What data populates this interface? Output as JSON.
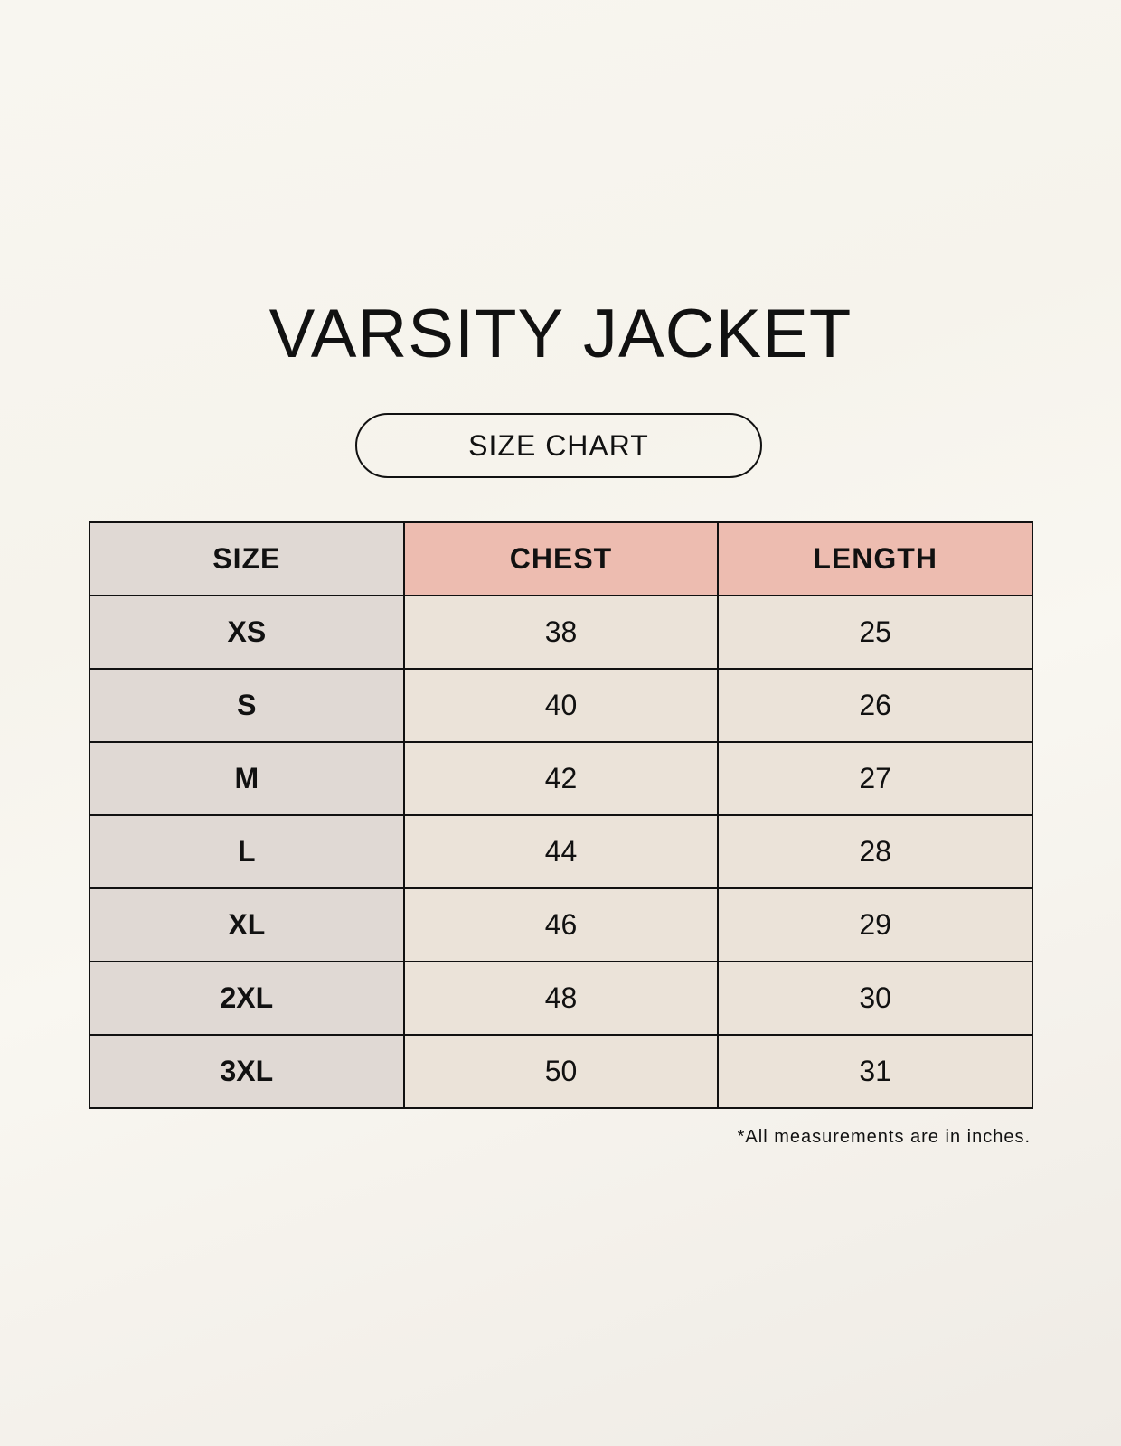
{
  "title": "VARSITY JACKET",
  "subtitle": "SIZE CHART",
  "colors": {
    "header_accent": "#edbcb0",
    "size_column": "#e0d9d4",
    "body_cells": "#ebe3d9",
    "background": "#f8f6f0"
  },
  "table": {
    "headers": [
      "SIZE",
      "CHEST",
      "LENGTH"
    ],
    "rows": [
      [
        "XS",
        "38",
        "25"
      ],
      [
        "S",
        "40",
        "26"
      ],
      [
        "M",
        "42",
        "27"
      ],
      [
        "L",
        "44",
        "28"
      ],
      [
        "XL",
        "46",
        "29"
      ],
      [
        "2XL",
        "48",
        "30"
      ],
      [
        "3XL",
        "50",
        "31"
      ]
    ]
  },
  "footnote": "*All measurements are in inches."
}
